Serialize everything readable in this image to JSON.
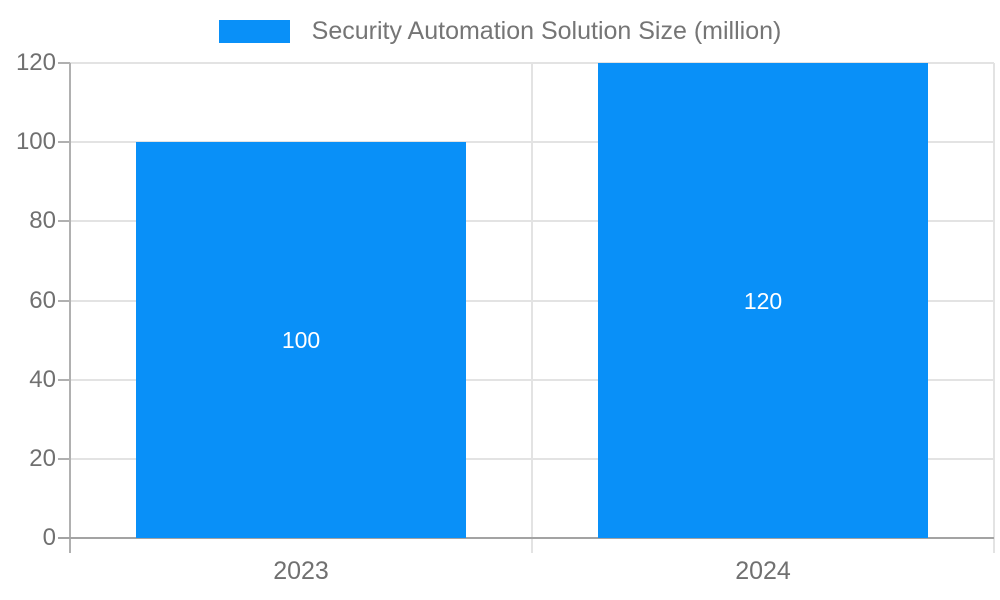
{
  "chart_data": {
    "type": "bar",
    "title": "",
    "legend": {
      "label": "Security Automation Solution Size (million)",
      "position": "top"
    },
    "categories": [
      "2023",
      "2024"
    ],
    "series": [
      {
        "name": "Security Automation Solution Size (million)",
        "values": [
          100,
          120
        ]
      }
    ],
    "bar_value_labels": [
      "100",
      "120"
    ],
    "ylabel": "",
    "xlabel": "",
    "ylim": [
      0,
      120
    ],
    "yticks": [
      0,
      20,
      40,
      60,
      80,
      100,
      120
    ],
    "grid": true,
    "colors": {
      "bar": "#0990f8",
      "grid": "#e3e3e3",
      "axis": "#b0b0b0",
      "baseline": "#a3a3a3",
      "tick_text": "#707070",
      "legend_text": "#757575",
      "bar_label_text": "#ffffff"
    }
  }
}
